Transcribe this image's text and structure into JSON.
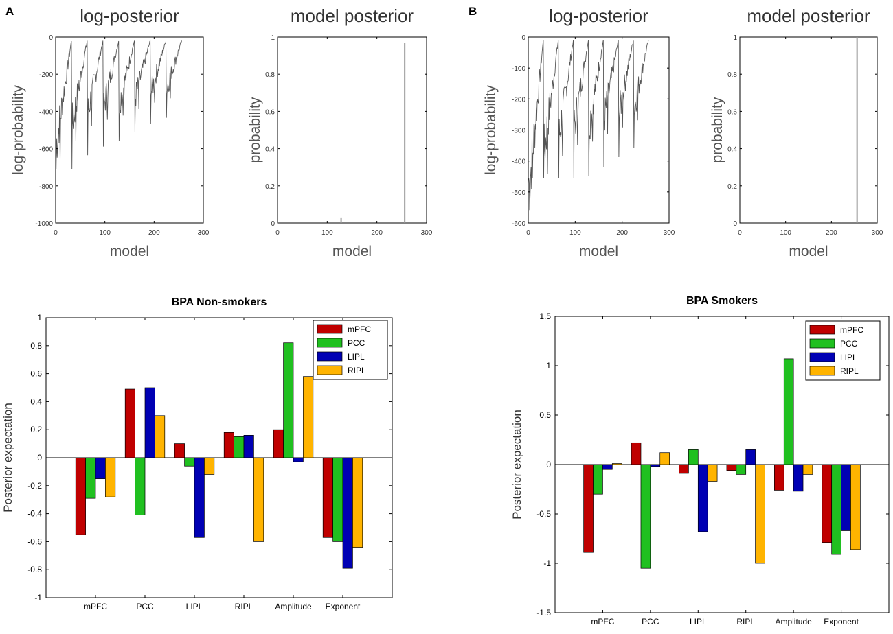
{
  "panel_labels": [
    "A",
    "B"
  ],
  "chart_data": [
    {
      "id": "A-log-posterior",
      "type": "line",
      "title": "log-posterior",
      "xlabel": "model",
      "ylabel": "log-probability",
      "xlim": [
        0,
        300
      ],
      "ylim": [
        -1000,
        0
      ],
      "xticks": [
        0,
        100,
        200,
        300
      ],
      "yticks": [
        0,
        -200,
        -400,
        -600,
        -800,
        -1000
      ],
      "xticklabels": [
        "0",
        "100",
        "200",
        "300"
      ],
      "yticklabels": [
        "0",
        "-200",
        "-400",
        "-600",
        "-800",
        "-1000"
      ],
      "n_models": 256,
      "sawtooth": {
        "period": 32,
        "start_values": [
          -580,
          -480,
          -410,
          -380,
          -360,
          -330,
          -300,
          -280
        ],
        "end_value": -20,
        "min_spike": -710
      },
      "color": "#555555"
    },
    {
      "id": "A-model-posterior",
      "type": "bar",
      "title": "model posterior",
      "xlabel": "model",
      "ylabel": "probability",
      "xlim": [
        0,
        300
      ],
      "ylim": [
        0,
        1
      ],
      "xticks": [
        0,
        100,
        200,
        300
      ],
      "yticks": [
        0,
        0.2,
        0.4,
        0.6,
        0.8,
        1
      ],
      "xticklabels": [
        "0",
        "100",
        "200",
        "300"
      ],
      "yticklabels": [
        "0",
        "0.2",
        "0.4",
        "0.6",
        "0.8",
        "1"
      ],
      "x": [
        128,
        256
      ],
      "values": [
        0.03,
        0.97
      ],
      "color": "#999999"
    },
    {
      "id": "B-log-posterior",
      "type": "line",
      "title": "log-posterior",
      "xlabel": "model",
      "ylabel": "log-probability",
      "xlim": [
        0,
        300
      ],
      "ylim": [
        -600,
        0
      ],
      "xticks": [
        0,
        100,
        200,
        300
      ],
      "yticks": [
        0,
        -100,
        -200,
        -300,
        -400,
        -500,
        -600
      ],
      "xticklabels": [
        "0",
        "100",
        "200",
        "300"
      ],
      "yticklabels": [
        "0",
        "-100",
        "-200",
        "-300",
        "-400",
        "-500",
        "-600"
      ],
      "n_models": 256,
      "sawtooth": {
        "period": 32,
        "start_values": [
          -500,
          -380,
          -330,
          -300,
          -290,
          -270,
          -250,
          -230
        ],
        "end_value": -10,
        "min_spike": -455
      },
      "color": "#555555"
    },
    {
      "id": "B-model-posterior",
      "type": "bar",
      "title": "model posterior",
      "xlabel": "model",
      "ylabel": "probability",
      "xlim": [
        0,
        300
      ],
      "ylim": [
        0,
        1
      ],
      "xticks": [
        0,
        100,
        200,
        300
      ],
      "yticks": [
        0,
        0.2,
        0.4,
        0.6,
        0.8,
        1
      ],
      "xticklabels": [
        "0",
        "100",
        "200",
        "300"
      ],
      "yticklabels": [
        "0",
        "0.2",
        "0.4",
        "0.6",
        "0.8",
        "1"
      ],
      "x": [
        256
      ],
      "values": [
        1.0
      ],
      "color": "#999999"
    },
    {
      "id": "A-bpa-nonsmokers",
      "type": "bar",
      "title": "BPA Non-smokers",
      "xlabel": "",
      "ylabel": "Posterior expectation",
      "ylim": [
        -1,
        1
      ],
      "yticks": [
        -1,
        -0.8,
        -0.6,
        -0.4,
        -0.2,
        0,
        0.2,
        0.4,
        0.6,
        0.8,
        1
      ],
      "yticklabels": [
        "-1",
        "-0.8",
        "-0.6",
        "-0.4",
        "-0.2",
        "0",
        "0.2",
        "0.4",
        "0.6",
        "0.8",
        "1"
      ],
      "categories": [
        "mPFC",
        "PCC",
        "LIPL",
        "RIPL",
        "Amplitude",
        "Exponent"
      ],
      "series": [
        {
          "name": "mPFC",
          "color": "#c00000",
          "values": [
            -0.55,
            0.49,
            0.1,
            0.18,
            0.2,
            -0.57
          ]
        },
        {
          "name": "PCC",
          "color": "#20c020",
          "values": [
            -0.29,
            -0.41,
            -0.06,
            0.15,
            0.82,
            -0.6
          ]
        },
        {
          "name": "LIPL",
          "color": "#0000b4",
          "values": [
            -0.15,
            0.5,
            -0.57,
            0.16,
            -0.03,
            -0.79
          ]
        },
        {
          "name": "RIPL",
          "color": "#ffb400",
          "values": [
            -0.28,
            0.3,
            -0.12,
            -0.6,
            0.58,
            -0.64
          ]
        }
      ]
    },
    {
      "id": "B-bpa-smokers",
      "type": "bar",
      "title": "BPA Smokers",
      "xlabel": "",
      "ylabel": "Posterior expectation",
      "ylim": [
        -1.5,
        1.5
      ],
      "yticks": [
        -1.5,
        -1,
        -0.5,
        0,
        0.5,
        1,
        1.5
      ],
      "yticklabels": [
        "-1.5",
        "-1",
        "-0.5",
        "0",
        "0.5",
        "1",
        "1.5"
      ],
      "categories": [
        "mPFC",
        "PCC",
        "LIPL",
        "RIPL",
        "Amplitude",
        "Exponent"
      ],
      "series": [
        {
          "name": "mPFC",
          "color": "#c00000",
          "values": [
            -0.89,
            0.22,
            -0.09,
            -0.06,
            -0.26,
            -0.79
          ]
        },
        {
          "name": "PCC",
          "color": "#20c020",
          "values": [
            -0.3,
            -1.05,
            0.15,
            -0.1,
            1.07,
            -0.91
          ]
        },
        {
          "name": "LIPL",
          "color": "#0000b4",
          "values": [
            -0.05,
            -0.02,
            -0.68,
            0.15,
            -0.27,
            -0.67
          ]
        },
        {
          "name": "RIPL",
          "color": "#ffb400",
          "values": [
            0.01,
            0.12,
            -0.17,
            -1.0,
            -0.1,
            -0.86
          ]
        }
      ]
    }
  ]
}
